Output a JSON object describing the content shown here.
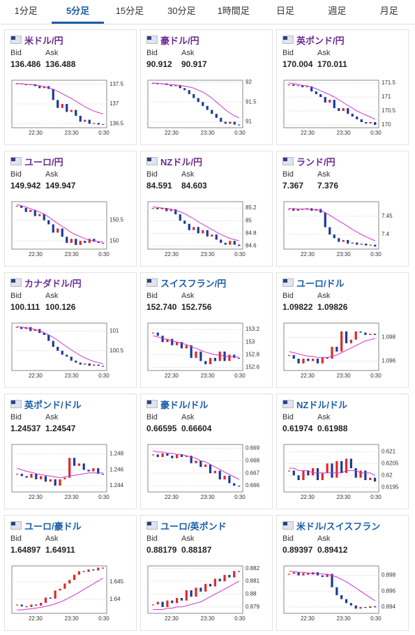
{
  "tabs": [
    "1分足",
    "5分足",
    "15分足",
    "30分足",
    "1時間足",
    "日足",
    "週足",
    "月足"
  ],
  "selected_tab": 1,
  "labels": {
    "bid": "Bid",
    "ask": "Ask"
  },
  "panels": [
    {
      "pair": "米ドル/円",
      "visited": true,
      "bid": "136.486",
      "ask": "136.488",
      "chart": {
        "ylim": [
          136.4,
          137.6
        ],
        "yticks": [
          136.5,
          137,
          137.5
        ],
        "xticks": [
          "22:30",
          "23:30",
          "0:30"
        ],
        "closes": [
          137.52,
          137.5,
          137.48,
          137.5,
          137.45,
          137.4,
          137.45,
          137.38,
          137.1,
          136.9,
          137.0,
          136.8,
          136.85,
          136.7,
          136.55,
          136.6,
          136.5,
          136.52,
          136.48,
          136.49
        ],
        "ma": [
          137.52,
          137.51,
          137.5,
          137.49,
          137.48,
          137.46,
          137.44,
          137.41,
          137.37,
          137.32,
          137.26,
          137.2,
          137.14,
          137.07,
          137.0,
          136.93,
          136.87,
          136.82,
          136.78,
          136.75
        ]
      }
    },
    {
      "pair": "豪ドル/円",
      "visited": true,
      "bid": "90.912",
      "ask": "90.917",
      "chart": {
        "ylim": [
          90.85,
          92.05
        ],
        "yticks": [
          91,
          91.5,
          92
        ],
        "xticks": [
          "22:30",
          "23:30",
          "0:30"
        ],
        "closes": [
          91.98,
          91.95,
          91.97,
          91.93,
          91.9,
          91.92,
          91.85,
          91.8,
          91.7,
          91.6,
          91.5,
          91.4,
          91.3,
          91.2,
          91.1,
          91.0,
          90.95,
          91.0,
          90.93,
          90.91
        ],
        "ma": [
          91.98,
          91.97,
          91.96,
          91.95,
          91.94,
          91.93,
          91.92,
          91.9,
          91.88,
          91.85,
          91.8,
          91.75,
          91.68,
          91.6,
          91.5,
          91.4,
          91.3,
          91.22,
          91.15,
          91.1
        ]
      }
    },
    {
      "pair": "英ポンド/円",
      "visited": true,
      "bid": "170.004",
      "ask": "170.011",
      "chart": {
        "ylim": [
          169.9,
          171.6
        ],
        "yticks": [
          170,
          170.5,
          171,
          171.5
        ],
        "xticks": [
          "22:30",
          "23:30",
          "0:30"
        ],
        "closes": [
          171.45,
          171.4,
          171.42,
          171.35,
          171.38,
          171.2,
          171.1,
          171.0,
          170.8,
          170.9,
          170.6,
          170.5,
          170.6,
          170.4,
          170.3,
          170.2,
          170.1,
          170.05,
          170.1,
          170.0
        ],
        "ma": [
          171.5,
          171.48,
          171.45,
          171.42,
          171.4,
          171.35,
          171.3,
          171.22,
          171.15,
          171.08,
          171,
          170.9,
          170.8,
          170.7,
          170.6,
          170.5,
          170.42,
          170.35,
          170.28,
          170.2
        ]
      }
    },
    {
      "pair": "ユーロ/円",
      "visited": true,
      "bid": "149.942",
      "ask": "149.947",
      "chart": {
        "ylim": [
          149.8,
          150.95
        ],
        "yticks": [
          150,
          150.5
        ],
        "xticks": [
          "22:30",
          "23:30",
          "0:30"
        ],
        "closes": [
          150.85,
          150.8,
          150.7,
          150.75,
          150.6,
          150.65,
          150.5,
          150.4,
          150.2,
          150.3,
          150.1,
          149.95,
          150.05,
          149.9,
          150.0,
          149.95,
          150.05,
          149.98,
          149.95,
          149.94
        ],
        "ma": [
          150.88,
          150.85,
          150.82,
          150.78,
          150.74,
          150.7,
          150.65,
          150.58,
          150.5,
          150.42,
          150.35,
          150.28,
          150.2,
          150.15,
          150.1,
          150.05,
          150.02,
          150.0,
          149.98,
          149.97
        ]
      }
    },
    {
      "pair": "NZドル/円",
      "visited": true,
      "bid": "84.591",
      "ask": "84.603",
      "chart": {
        "ylim": [
          84.55,
          85.3
        ],
        "yticks": [
          84.6,
          84.8,
          85,
          85.2
        ],
        "xticks": [
          "22:30",
          "23:30",
          "0:30"
        ],
        "closes": [
          85.2,
          85.18,
          85.2,
          85.15,
          85.18,
          85.1,
          85.0,
          84.95,
          84.85,
          84.9,
          84.8,
          84.85,
          84.75,
          84.78,
          84.7,
          84.65,
          84.62,
          84.68,
          84.62,
          84.6
        ],
        "ma": [
          85.22,
          85.21,
          85.2,
          85.19,
          85.18,
          85.16,
          85.14,
          85.11,
          85.07,
          85.03,
          84.98,
          84.94,
          84.9,
          84.86,
          84.82,
          84.78,
          84.75,
          84.72,
          84.7,
          84.68
        ]
      }
    },
    {
      "pair": "ランド/円",
      "visited": true,
      "bid": "7.367",
      "ask": "7.376",
      "chart": {
        "ylim": [
          7.36,
          7.49
        ],
        "yticks": [
          7.4,
          7.45
        ],
        "xticks": [
          "22:30",
          "23:30",
          "0:30"
        ],
        "closes": [
          7.47,
          7.465,
          7.47,
          7.468,
          7.472,
          7.465,
          7.47,
          7.46,
          7.42,
          7.4,
          7.39,
          7.38,
          7.385,
          7.375,
          7.378,
          7.372,
          7.375,
          7.37,
          7.372,
          7.367
        ],
        "ma": [
          7.472,
          7.471,
          7.47,
          7.47,
          7.47,
          7.469,
          7.468,
          7.466,
          7.46,
          7.453,
          7.445,
          7.437,
          7.43,
          7.422,
          7.414,
          7.407,
          7.4,
          7.394,
          7.388,
          7.383
        ]
      }
    },
    {
      "pair": "カナダドル/円",
      "visited": true,
      "bid": "100.111",
      "ask": "100.126",
      "chart": {
        "ylim": [
          100,
          101.2
        ],
        "yticks": [
          100.5,
          101
        ],
        "xticks": [
          "22:30",
          "23:30",
          "0:30"
        ],
        "closes": [
          101.1,
          101.05,
          101.1,
          101.0,
          101.05,
          100.95,
          100.9,
          100.75,
          100.6,
          100.5,
          100.4,
          100.35,
          100.25,
          100.2,
          100.15,
          100.18,
          100.12,
          100.15,
          100.12,
          100.11
        ],
        "ma": [
          101.12,
          101.1,
          101.08,
          101.06,
          101.04,
          101.0,
          100.96,
          100.9,
          100.84,
          100.76,
          100.68,
          100.6,
          100.52,
          100.45,
          100.38,
          100.32,
          100.27,
          100.23,
          100.2,
          100.17
        ]
      }
    },
    {
      "pair": "スイスフラン/円",
      "visited": false,
      "bid": "152.740",
      "ask": "152.756",
      "chart": {
        "ylim": [
          152.55,
          153.3
        ],
        "yticks": [
          152.6,
          152.8,
          153,
          153.2
        ],
        "xticks": [
          "22:30",
          "23:30",
          "0:30"
        ],
        "closes": [
          153.15,
          153.1,
          153.0,
          153.05,
          152.95,
          153.0,
          152.9,
          152.95,
          152.75,
          152.85,
          152.7,
          152.65,
          152.75,
          152.7,
          152.85,
          152.7,
          152.8,
          152.75,
          152.74
        ],
        "ma": [
          153.1,
          153.08,
          153.06,
          153.04,
          153.02,
          153.0,
          152.98,
          152.96,
          152.93,
          152.9,
          152.87,
          152.84,
          152.82,
          152.8,
          152.79,
          152.78,
          152.77,
          152.77,
          152.76
        ]
      }
    },
    {
      "pair": "ユーロ/ドル",
      "visited": false,
      "bid": "1.09822",
      "ask": "1.09826",
      "chart": {
        "ylim": [
          1.0952,
          1.0992
        ],
        "yticks": [
          1.096,
          1.098
        ],
        "xticks": [
          "22:30",
          "23:30",
          "0:30"
        ],
        "closes": [
          1.0965,
          1.0962,
          1.0958,
          1.0962,
          1.096,
          1.0962,
          1.0958,
          1.0963,
          1.0962,
          1.0972,
          1.0968,
          1.0985,
          1.0975,
          1.0978,
          1.0985,
          1.0984,
          1.0982,
          1.0983,
          1.0982
        ],
        "ma": [
          1.0968,
          1.0967,
          1.0966,
          1.0965,
          1.0964,
          1.0964,
          1.0963,
          1.0963,
          1.0963,
          1.0964,
          1.0965,
          1.0967,
          1.0969,
          1.0971,
          1.0973,
          1.0975,
          1.0977,
          1.0978,
          1.0979
        ]
      }
    },
    {
      "pair": "英ポンド/ドル",
      "visited": false,
      "bid": "1.24537",
      "ask": "1.24547",
      "chart": {
        "ylim": [
          1.2432,
          1.2492
        ],
        "yticks": [
          1.244,
          1.246,
          1.248
        ],
        "xticks": [
          "22:30",
          "23:30",
          "0:30"
        ],
        "closes": [
          1.2455,
          1.2452,
          1.245,
          1.2455,
          1.2448,
          1.2452,
          1.2445,
          1.2448,
          1.244,
          1.2448,
          1.245,
          1.2475,
          1.2465,
          1.2468,
          1.246,
          1.2458,
          1.2462,
          1.2455,
          1.2454
        ],
        "ma": [
          1.2462,
          1.246,
          1.2458,
          1.2457,
          1.2455,
          1.2454,
          1.2453,
          1.2452,
          1.2451,
          1.245,
          1.2451,
          1.2452,
          1.2453,
          1.2454,
          1.2455,
          1.2456,
          1.2456,
          1.2456,
          1.2456
        ]
      }
    },
    {
      "pair": "豪ドル/ドル",
      "visited": false,
      "bid": "0.66595",
      "ask": "0.66604",
      "chart": {
        "ylim": [
          0.6655,
          0.6693
        ],
        "yticks": [
          0.666,
          0.667,
          0.668,
          0.669
        ],
        "xticks": [
          "22:30",
          "23:30",
          "0:30"
        ],
        "closes": [
          0.6685,
          0.6683,
          0.6686,
          0.6684,
          0.6682,
          0.6685,
          0.6683,
          0.6684,
          0.6678,
          0.668,
          0.6675,
          0.6677,
          0.667,
          0.6672,
          0.6665,
          0.6668,
          0.6662,
          0.666,
          0.66595
        ],
        "ma": [
          0.6688,
          0.6687,
          0.6687,
          0.6686,
          0.6686,
          0.6685,
          0.6685,
          0.6684,
          0.6683,
          0.6682,
          0.668,
          0.6679,
          0.6677,
          0.6675,
          0.6673,
          0.6671,
          0.6669,
          0.6667,
          0.6665
        ]
      }
    },
    {
      "pair": "NZドル/ドル",
      "visited": false,
      "bid": "0.61974",
      "ask": "0.61988",
      "chart": {
        "ylim": [
          0.6193,
          0.6213
        ],
        "yticks": [
          0.6195,
          0.62,
          0.6205,
          0.621
        ],
        "xticks": [
          "22:30",
          "23:30",
          "0:30"
        ],
        "closes": [
          0.6202,
          0.62,
          0.6198,
          0.6202,
          0.62,
          0.6203,
          0.6198,
          0.6201,
          0.6205,
          0.6199,
          0.6206,
          0.6201,
          0.6207,
          0.6203,
          0.6199,
          0.6202,
          0.6198,
          0.6199,
          0.61974
        ],
        "ma": [
          0.6203,
          0.6203,
          0.6202,
          0.6202,
          0.6202,
          0.6201,
          0.6201,
          0.6201,
          0.6201,
          0.6201,
          0.6201,
          0.6201,
          0.6202,
          0.6202,
          0.6202,
          0.6201,
          0.6201,
          0.6201,
          0.62
        ]
      }
    },
    {
      "pair": "ユーロ/豪ドル",
      "visited": false,
      "bid": "1.64897",
      "ask": "1.64911",
      "chart": {
        "ylim": [
          1.636,
          1.6495
        ],
        "yticks": [
          1.64,
          1.645
        ],
        "xticks": [
          "22:30",
          "23:30",
          "0:30"
        ],
        "closes": [
          1.6385,
          1.638,
          1.6378,
          1.6385,
          1.6382,
          1.639,
          1.6405,
          1.6402,
          1.6425,
          1.643,
          1.6445,
          1.6455,
          1.647,
          1.648,
          1.6478,
          1.6485,
          1.6482,
          1.649,
          1.64897
        ],
        "ma": [
          1.637,
          1.637,
          1.6372,
          1.6373,
          1.6375,
          1.6377,
          1.638,
          1.6383,
          1.6387,
          1.6392,
          1.6398,
          1.6405,
          1.6412,
          1.642,
          1.6428,
          1.6436,
          1.6444,
          1.6452,
          1.646
        ]
      }
    },
    {
      "pair": "ユーロ/英ポンド",
      "visited": false,
      "bid": "0.88179",
      "ask": "0.88187",
      "chart": {
        "ylim": [
          0.8785,
          0.8822
        ],
        "yticks": [
          0.879,
          0.88,
          0.881,
          0.882
        ],
        "xticks": [
          "22:30",
          "23:30",
          "0:30"
        ],
        "closes": [
          0.8792,
          0.8794,
          0.879,
          0.8795,
          0.8793,
          0.8797,
          0.8795,
          0.8803,
          0.8798,
          0.8805,
          0.8802,
          0.8808,
          0.8806,
          0.8812,
          0.881,
          0.8815,
          0.8813,
          0.8818,
          0.88179
        ],
        "ma": [
          0.8788,
          0.8788,
          0.8788,
          0.8789,
          0.8789,
          0.879,
          0.879,
          0.8791,
          0.8792,
          0.8793,
          0.8794,
          0.8796,
          0.8798,
          0.88,
          0.8802,
          0.8804,
          0.8806,
          0.8808,
          0.881
        ]
      }
    },
    {
      "pair": "米ドル/スイスフラン",
      "visited": false,
      "bid": "0.89397",
      "ask": "0.89412",
      "chart": {
        "ylim": [
          0.8932,
          0.8992
        ],
        "yticks": [
          0.894,
          0.896,
          0.898
        ],
        "xticks": [
          "22:30",
          "23:30",
          "0:30"
        ],
        "closes": [
          0.8982,
          0.8984,
          0.898,
          0.8983,
          0.8981,
          0.8984,
          0.898,
          0.8978,
          0.8982,
          0.8965,
          0.8955,
          0.895,
          0.8945,
          0.8942,
          0.8938,
          0.894,
          0.8939,
          0.8941,
          0.89397
        ],
        "ma": [
          0.8985,
          0.8985,
          0.8984,
          0.8984,
          0.8983,
          0.8983,
          0.8982,
          0.8982,
          0.8981,
          0.898,
          0.8978,
          0.8975,
          0.8972,
          0.8968,
          0.8964,
          0.896,
          0.8956,
          0.8952,
          0.8948
        ]
      }
    }
  ]
}
